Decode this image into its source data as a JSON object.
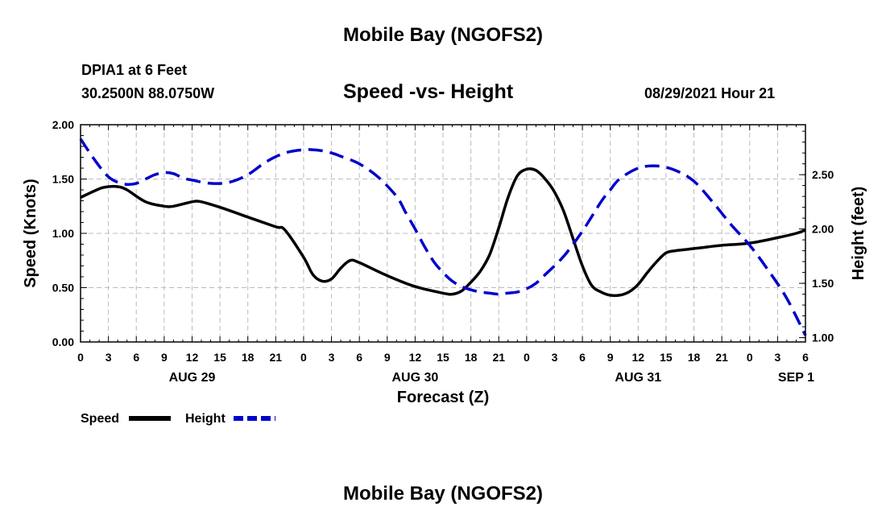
{
  "header": {
    "top_title": "Mobile Bay (NGOFS2)",
    "station": "DPIA1 at 6 Feet",
    "coords": "30.2500N  88.0750W",
    "subtitle": "Speed -vs- Height",
    "timestamp": "08/29/2021 Hour 21"
  },
  "footer": {
    "bottom_title": "Mobile Bay (NGOFS2)"
  },
  "chart_data": {
    "type": "line",
    "title": "Speed -vs- Height",
    "xlabel": "Forecast (Z)",
    "ylabel_left": "Speed (Knots)",
    "ylabel_right": "Height (feet)",
    "x_unit": "forecast hours",
    "xlim": [
      0,
      78
    ],
    "x_ticks": [
      0,
      3,
      6,
      9,
      12,
      15,
      18,
      21,
      24,
      27,
      30,
      33,
      36,
      39,
      42,
      45,
      48,
      51,
      54,
      57,
      60,
      63,
      66,
      69,
      72,
      75,
      78
    ],
    "x_tick_labels": [
      "0",
      "3",
      "6",
      "9",
      "12",
      "15",
      "18",
      "21",
      "0",
      "3",
      "6",
      "9",
      "12",
      "15",
      "18",
      "21",
      "0",
      "3",
      "6",
      "9",
      "12",
      "15",
      "18",
      "21",
      "0",
      "3",
      "6"
    ],
    "day_labels": [
      {
        "x": 12,
        "label": "AUG 29"
      },
      {
        "x": 36,
        "label": "AUG 30"
      },
      {
        "x": 60,
        "label": "AUG 31"
      },
      {
        "x": 77,
        "label": "SEP 1"
      }
    ],
    "ylim_left": [
      0,
      2
    ],
    "yticks_left": [
      "0.00",
      "0.50",
      "1.00",
      "1.50",
      "2.00"
    ],
    "ylim_right": [
      0.96,
      2.96
    ],
    "yticks_right": [
      "1.00",
      "1.50",
      "2.00",
      "2.50"
    ],
    "yticks_right_values": [
      1.0,
      1.5,
      2.0,
      2.5
    ],
    "grid": true,
    "legend": [
      {
        "label": "Speed",
        "color": "#000000",
        "style": "solid"
      },
      {
        "label": "Height",
        "color": "#0000cc",
        "style": "dashed"
      }
    ],
    "series": [
      {
        "name": "Speed",
        "axis": "left",
        "color": "#000000",
        "dash": "solid",
        "x": [
          0,
          2,
          3,
          4,
          5,
          7,
          9,
          10,
          12,
          13,
          15,
          18,
          21,
          22,
          24,
          25,
          26,
          27,
          28,
          29,
          30,
          33,
          36,
          39,
          40,
          41,
          42,
          43,
          44,
          45,
          46,
          47,
          48,
          49,
          50,
          51,
          52,
          53,
          54,
          55,
          56,
          57,
          58,
          59,
          60,
          61,
          62,
          63,
          64,
          65,
          66,
          67,
          69,
          72,
          75,
          77,
          78
        ],
        "y": [
          1.33,
          1.41,
          1.43,
          1.43,
          1.4,
          1.29,
          1.25,
          1.25,
          1.29,
          1.29,
          1.24,
          1.15,
          1.06,
          1.03,
          0.78,
          0.62,
          0.56,
          0.58,
          0.68,
          0.75,
          0.73,
          0.61,
          0.51,
          0.45,
          0.44,
          0.47,
          0.55,
          0.65,
          0.8,
          1.05,
          1.33,
          1.53,
          1.59,
          1.58,
          1.5,
          1.38,
          1.2,
          0.95,
          0.7,
          0.52,
          0.46,
          0.43,
          0.43,
          0.46,
          0.53,
          0.64,
          0.74,
          0.82,
          0.84,
          0.85,
          0.86,
          0.87,
          0.89,
          0.91,
          0.96,
          1.0,
          1.03
        ]
      },
      {
        "name": "Height",
        "axis": "right",
        "color": "#0000cc",
        "dash": "dashed",
        "x": [
          0,
          1,
          2,
          3,
          4,
          5,
          6,
          7,
          8,
          9,
          10,
          11,
          12,
          14,
          16,
          18,
          20,
          22,
          24,
          25,
          26,
          27,
          28,
          30,
          32,
          34,
          35,
          36,
          37,
          38,
          39,
          40,
          41,
          42,
          43,
          44,
          45,
          46,
          47,
          48,
          49,
          50,
          52,
          54,
          56,
          57,
          58,
          60,
          62,
          64,
          66,
          68,
          70,
          72,
          74,
          76,
          78
        ],
        "y": [
          2.83,
          2.7,
          2.58,
          2.48,
          2.43,
          2.41,
          2.42,
          2.46,
          2.5,
          2.52,
          2.51,
          2.47,
          2.45,
          2.42,
          2.43,
          2.5,
          2.62,
          2.7,
          2.73,
          2.73,
          2.72,
          2.7,
          2.67,
          2.6,
          2.48,
          2.3,
          2.15,
          2.0,
          1.84,
          1.7,
          1.6,
          1.52,
          1.47,
          1.44,
          1.42,
          1.41,
          1.4,
          1.41,
          1.42,
          1.45,
          1.5,
          1.58,
          1.75,
          1.98,
          2.25,
          2.36,
          2.46,
          2.56,
          2.58,
          2.54,
          2.44,
          2.25,
          2.04,
          1.85,
          1.62,
          1.36,
          1.02
        ]
      }
    ]
  }
}
